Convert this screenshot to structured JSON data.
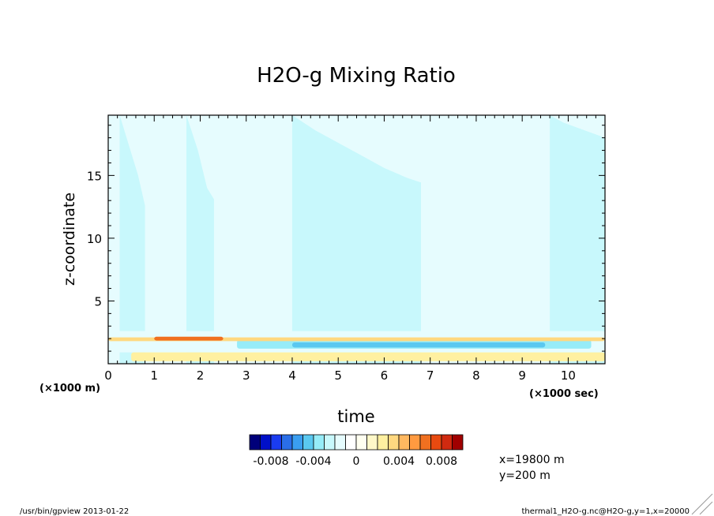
{
  "chart_data": {
    "type": "heatmap",
    "title": "H2O-g Mixing Ratio",
    "xlabel": "time",
    "ylabel": "z-coordinate",
    "x_unit_note": "(×1000 sec)",
    "y_unit_note": "(×1000 m)",
    "xlim": [
      0,
      10.8
    ],
    "ylim": [
      0,
      19.8
    ],
    "x_ticks": [
      "0",
      "1",
      "2",
      "3",
      "4",
      "5",
      "6",
      "7",
      "8",
      "9",
      "10"
    ],
    "y_ticks": [
      "5",
      "10",
      "15"
    ],
    "colorbar": {
      "levels": [
        -0.01,
        -0.009,
        -0.008,
        -0.007,
        -0.006,
        -0.005,
        -0.004,
        -0.003,
        -0.002,
        -0.001,
        0,
        0.001,
        0.002,
        0.003,
        0.004,
        0.005,
        0.006,
        0.007,
        0.008,
        0.009,
        0.01
      ],
      "colors": [
        "#00007a",
        "#0010c8",
        "#1a3cf0",
        "#2a6ee8",
        "#3a9ef0",
        "#5ac8f0",
        "#96ecf8",
        "#c8f8fc",
        "#e6fcfe",
        "#ffffff",
        "#fffff0",
        "#fff8c8",
        "#fff0a0",
        "#ffd880",
        "#ffb860",
        "#ff9a40",
        "#f07020",
        "#e84a10",
        "#d02a10",
        "#a00000"
      ],
      "tick_labels": [
        "-0.008",
        "-0.004",
        "0",
        "0.004",
        "0.008"
      ]
    },
    "bands": [
      {
        "x": [
          0.25,
          0.65,
          0.9,
          1.25,
          1.5,
          1.8,
          2.2,
          2.6,
          3.0,
          3.4,
          3.8,
          4.2,
          4.6,
          5.0,
          5.4,
          5.8,
          6.2,
          6.6,
          7.0,
          7.4,
          7.8,
          8.2,
          8.6,
          9.0,
          9.4,
          9.8,
          10.2,
          10.8
        ],
        "y": [
          19.8,
          15.0,
          11.0,
          7.0,
          5.2,
          4.7,
          4.6,
          4.4,
          4.3,
          4.2,
          4.1,
          4.0,
          3.9,
          3.8,
          3.8,
          3.7,
          3.6,
          3.6,
          3.5,
          3.5,
          3.4,
          3.4,
          3.3,
          3.3,
          3.3,
          3.2,
          3.2,
          3.1
        ]
      },
      {
        "x": [
          0.8,
          1.1,
          1.3,
          1.45,
          1.6,
          1.8,
          2.0,
          2.2,
          2.6,
          3.0,
          3.4,
          3.8,
          4.2,
          4.6,
          5.0,
          5.4,
          5.8,
          6.2,
          6.6,
          7.0,
          7.4,
          7.8,
          8.2,
          8.6,
          9.0,
          9.4,
          9.8,
          10.2,
          10.8
        ],
        "y": [
          19.8,
          15.5,
          11.5,
          8.5,
          6.5,
          5.6,
          5.8,
          6.0,
          7.0,
          8.0,
          7.6,
          7.2,
          6.8,
          6.5,
          6.2,
          6.0,
          5.8,
          5.6,
          5.4,
          5.3,
          5.2,
          5.1,
          5.0,
          4.9,
          4.8,
          4.7,
          4.6,
          4.5,
          4.4
        ]
      },
      {
        "x": [
          1.7,
          1.95,
          2.15,
          2.4,
          2.7,
          3.0,
          3.4,
          3.8,
          4.2,
          4.6,
          5.0,
          5.4,
          5.8,
          6.2,
          6.6,
          7.0,
          7.4,
          7.8,
          8.2,
          8.6,
          9.0,
          9.4,
          9.8,
          10.2,
          10.8
        ],
        "y": [
          19.8,
          17.0,
          14.0,
          12.5,
          12.0,
          11.2,
          10.6,
          10.2,
          9.6,
          9.2,
          8.8,
          8.5,
          8.2,
          8.0,
          7.8,
          7.6,
          7.4,
          7.3,
          7.2,
          7.1,
          7.0,
          6.9,
          6.8,
          6.7,
          6.6
        ]
      },
      {
        "x": [
          2.3,
          2.5,
          2.8,
          3.2,
          3.6,
          4.0,
          4.4,
          4.8,
          5.2,
          5.6,
          6.0,
          6.4,
          6.8,
          7.2,
          7.6,
          8.0,
          8.4,
          8.8,
          9.2,
          9.6,
          10.0,
          10.4,
          10.8
        ],
        "y": [
          19.8,
          17.6,
          15.5,
          14.6,
          14.2,
          13.6,
          13.0,
          12.5,
          12.0,
          11.6,
          11.2,
          10.9,
          10.6,
          10.3,
          10.0,
          9.8,
          9.6,
          9.4,
          9.2,
          9.0,
          8.8,
          8.7,
          8.6
        ]
      },
      {
        "x": [
          4.0,
          4.5,
          5.0,
          5.5,
          6.0,
          6.5,
          7.0,
          7.5,
          8.0,
          8.5,
          9.0,
          9.5,
          10.0,
          10.4,
          10.8
        ],
        "y": [
          19.8,
          18.6,
          17.6,
          16.6,
          15.6,
          14.8,
          14.2,
          13.6,
          13.0,
          12.6,
          12.2,
          11.8,
          11.4,
          11.2,
          11.0
        ]
      },
      {
        "x": [
          6.8,
          7.2,
          7.6,
          8.0,
          8.4,
          8.8,
          9.2,
          9.6,
          10.0,
          10.4,
          10.8
        ],
        "y": [
          19.8,
          18.9,
          18.2,
          17.6,
          17.0,
          16.6,
          16.2,
          15.8,
          15.4,
          15.1,
          14.8
        ]
      },
      {
        "x": [
          9.6,
          9.9,
          10.2,
          10.5,
          10.8
        ],
        "y": [
          19.8,
          19.2,
          18.8,
          18.4,
          18.0
        ]
      }
    ],
    "surface_features": [
      {
        "x": [
          0.2,
          10.8
        ],
        "y": [
          0.9,
          2.6
        ],
        "level": -0.002
      },
      {
        "x": [
          2.8,
          10.5
        ],
        "y": [
          1.2,
          1.9
        ],
        "level": -0.004
      },
      {
        "x": [
          4.0,
          9.5
        ],
        "y": [
          1.3,
          1.7
        ],
        "level": -0.005
      },
      {
        "x": [
          0.0,
          10.8
        ],
        "y": [
          1.8,
          2.1
        ],
        "level": 0.003
      },
      {
        "x": [
          1.0,
          2.5
        ],
        "y": [
          1.85,
          2.15
        ],
        "level": 0.006
      },
      {
        "x": [
          0.5,
          10.8
        ],
        "y": [
          0.2,
          0.9
        ],
        "level": 0.002
      }
    ],
    "x_info": "x=19800  m",
    "y_info": "y=200  m"
  },
  "footer": {
    "left": "/usr/bin/gpview  2013-01-22",
    "right": "thermal1_H2O-g.nc@H2O-g,y=1,x=20000"
  }
}
